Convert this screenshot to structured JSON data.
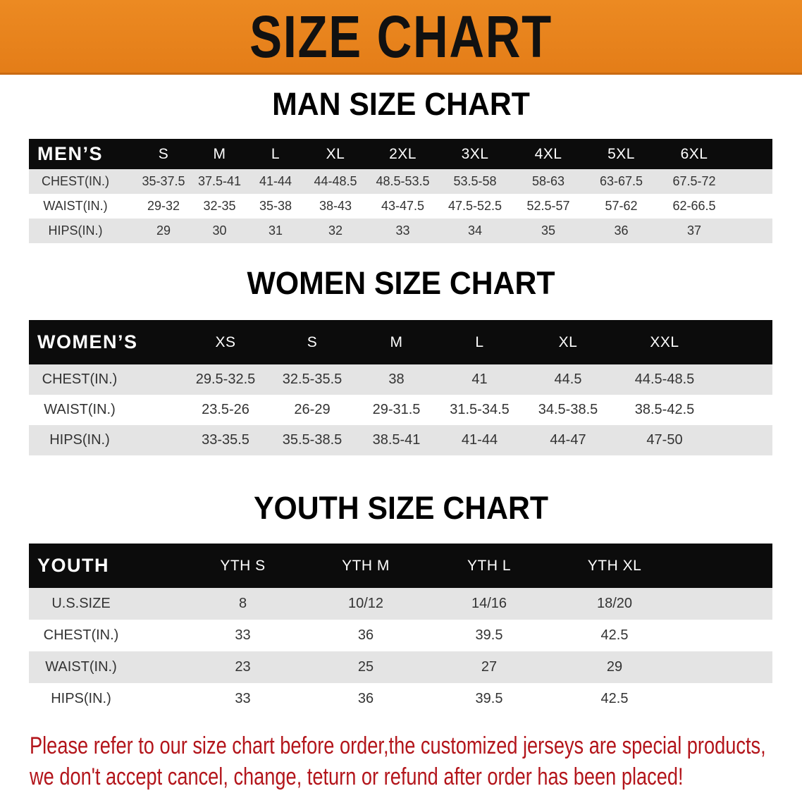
{
  "banner": {
    "title": "SIZE CHART",
    "color": "#e8821e"
  },
  "men": {
    "title": "MAN SIZE CHART",
    "header_label": "MEN’S",
    "sizes": [
      "S",
      "M",
      "L",
      "XL",
      "2XL",
      "3XL",
      "4XL",
      "5XL",
      "6XL"
    ],
    "rows": [
      {
        "label": "CHEST(IN.)",
        "values": [
          "35-37.5",
          "37.5-41",
          "41-44",
          "44-48.5",
          "48.5-53.5",
          "53.5-58",
          "58-63",
          "63-67.5",
          "67.5-72"
        ]
      },
      {
        "label": "WAIST(IN.)",
        "values": [
          "29-32",
          "32-35",
          "35-38",
          "38-43",
          "43-47.5",
          "47.5-52.5",
          "52.5-57",
          "57-62",
          "62-66.5"
        ]
      },
      {
        "label": "HIPS(IN.)",
        "values": [
          "29",
          "30",
          "31",
          "32",
          "33",
          "34",
          "35",
          "36",
          "37"
        ]
      }
    ]
  },
  "women": {
    "title": "WOMEN SIZE CHART",
    "header_label": "WOMEN’S",
    "sizes": [
      "XS",
      "S",
      "M",
      "L",
      "XL",
      "XXL"
    ],
    "rows": [
      {
        "label": "CHEST(IN.)",
        "values": [
          "29.5-32.5",
          "32.5-35.5",
          "38",
          "41",
          "44.5",
          "44.5-48.5"
        ]
      },
      {
        "label": "WAIST(IN.)",
        "values": [
          "23.5-26",
          "26-29",
          "29-31.5",
          "31.5-34.5",
          "34.5-38.5",
          "38.5-42.5"
        ]
      },
      {
        "label": "HIPS(IN.)",
        "values": [
          "33-35.5",
          "35.5-38.5",
          "38.5-41",
          "41-44",
          "44-47",
          "47-50"
        ]
      }
    ]
  },
  "youth": {
    "title": "YOUTH SIZE CHART",
    "header_label": "YOUTH",
    "sizes": [
      "YTH S",
      "YTH M",
      "YTH L",
      "YTH XL"
    ],
    "rows": [
      {
        "label": "U.S.SIZE",
        "values": [
          "8",
          "10/12",
          "14/16",
          "18/20"
        ]
      },
      {
        "label": "CHEST(IN.)",
        "values": [
          "33",
          "36",
          "39.5",
          "42.5"
        ]
      },
      {
        "label": "WAIST(IN.)",
        "values": [
          "23",
          "25",
          "27",
          "29"
        ]
      },
      {
        "label": "HIPS(IN.)",
        "values": [
          "33",
          "36",
          "39.5",
          "42.5"
        ]
      }
    ]
  },
  "footer": {
    "line1": "Please refer to our size chart before order,the customized jerseys are special products,",
    "line2": "we don't accept cancel, change, teturn or refund after order has been placed!",
    "color": "#b3151b"
  }
}
